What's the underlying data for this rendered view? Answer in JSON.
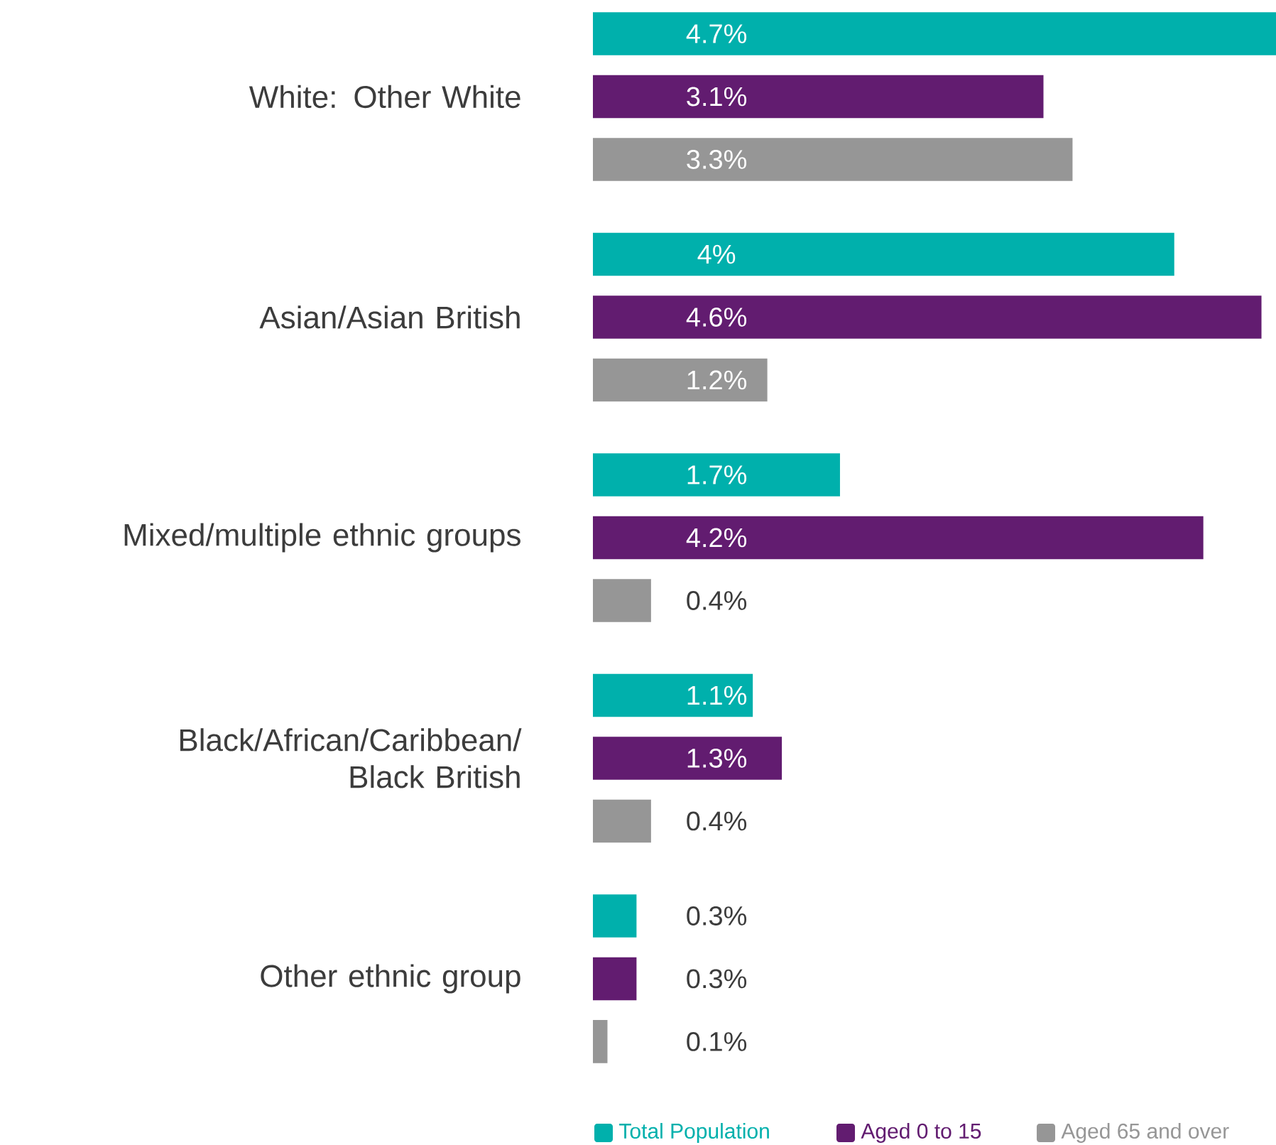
{
  "chart_data": {
    "type": "bar",
    "orientation": "horizontal",
    "legend": "bottom",
    "categories": [
      "White: Other White",
      "Asian/Asian British",
      "Mixed/multiple ethnic groups",
      "Black/African/Caribbean/ Black British",
      "Other ethnic group"
    ],
    "series": [
      {
        "name": "Total Population",
        "color": "#00b0ac",
        "values": [
          4.7,
          4,
          1.7,
          1.1,
          0.3
        ],
        "value_labels": [
          "4.7%",
          "4%",
          "1.7%",
          "1.1%",
          "0.3%"
        ]
      },
      {
        "name": "Aged 0 to 15",
        "color": "#621c70",
        "values": [
          3.1,
          4.6,
          4.2,
          1.3,
          0.3
        ],
        "value_labels": [
          "3.1%",
          "4.6%",
          "4.2%",
          "1.3%",
          "0.3%"
        ]
      },
      {
        "name": "Aged 65 and over",
        "color": "#969696",
        "values": [
          3.3,
          1.2,
          0.4,
          0.4,
          0.1
        ],
        "value_labels": [
          "3.3%",
          "1.2%",
          "0.4%",
          "0.4%",
          "0.1%"
        ]
      }
    ]
  }
}
